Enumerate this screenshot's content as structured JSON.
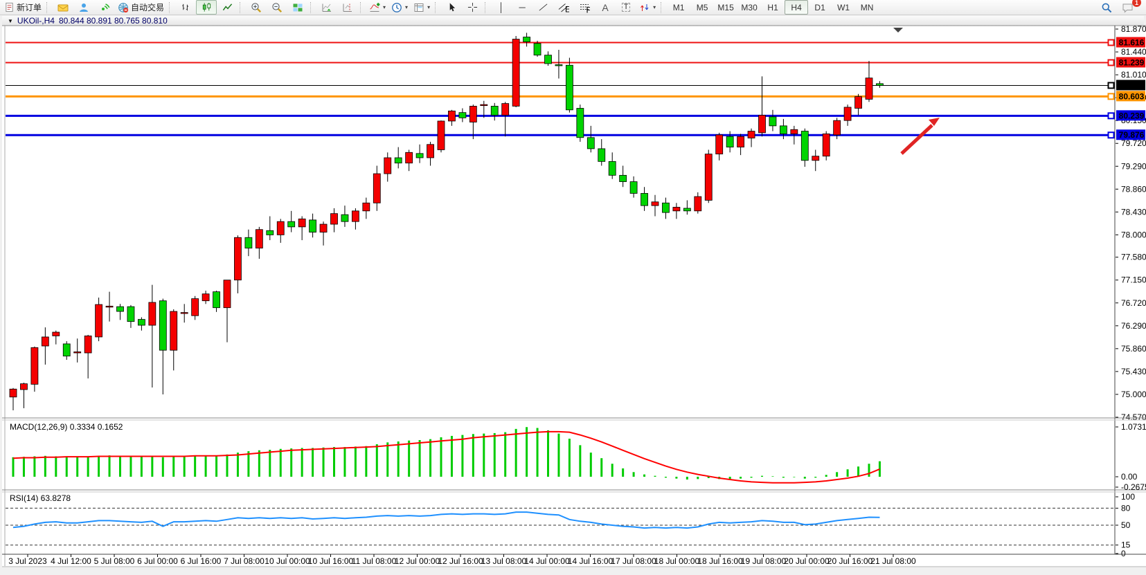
{
  "toolbar": {
    "new_order_label": "新订单",
    "autotrade_label": "自动交易",
    "timeframes": [
      "M1",
      "M5",
      "M15",
      "M30",
      "H1",
      "H4",
      "D1",
      "W1",
      "MN"
    ],
    "active_timeframe": "H4",
    "notification_count": "1",
    "icons": [
      "new-order-icon",
      "mail-icon",
      "community-icon",
      "signals-icon",
      "globe-icon",
      "bar-chart-icon",
      "candlestick-chart-icon",
      "line-chart-icon",
      "zoom-in-icon",
      "zoom-out-icon",
      "tile-windows-icon",
      "auto-scroll-icon",
      "chart-shift-icon",
      "indicators-plus-icon",
      "periods-clock-icon",
      "template-icon",
      "cursor-icon",
      "crosshair-icon",
      "vertical-line-icon",
      "horizontal-line-icon",
      "trendline-icon",
      "channel-icon",
      "fibonacci-icon",
      "text-icon",
      "label-icon",
      "shapes-icon",
      "search-icon",
      "chat-icon"
    ]
  },
  "chart": {
    "symbol_period": "UKOil-,H4",
    "ohlc": "80.844 80.891 80.765 80.810",
    "menu_glyph": "▼"
  },
  "chart_data": [
    {
      "type": "candlestick",
      "title": "UKOil-,H4",
      "up_color": "#f40000",
      "down_color": "#00d400",
      "x_labels": [
        "3 Jul 2023",
        "4 Jul 12:00",
        "5 Jul 08:00",
        "6 Jul 00:00",
        "6 Jul 16:00",
        "7 Jul 08:00",
        "10 Jul 00:00",
        "10 Jul 16:00",
        "11 Jul 08:00",
        "12 Jul 00:00",
        "12 Jul 16:00",
        "13 Jul 08:00",
        "14 Jul 00:00",
        "14 Jul 16:00",
        "17 Jul 08:00",
        "18 Jul 00:00",
        "18 Jul 16:00",
        "19 Jul 08:00",
        "20 Jul 00:00",
        "20 Jul 16:00",
        "21 Jul 08:00"
      ],
      "y_ticks": [
        "81.870",
        "81.440",
        "81.010",
        "80.580",
        "80.150",
        "79.720",
        "79.290",
        "78.860",
        "78.430",
        "78.000",
        "77.580",
        "77.150",
        "76.720",
        "76.290",
        "75.860",
        "75.430",
        "75.000",
        "74.570"
      ],
      "hlines": [
        {
          "label": "81.616",
          "price": 81.616,
          "color": "#ee1111",
          "width": 2
        },
        {
          "label": "81.239",
          "price": 81.239,
          "color": "#ee1111",
          "width": 2
        },
        {
          "label": "80.603",
          "price": 80.603,
          "color": "#ff9400",
          "width": 3
        },
        {
          "label": "80.239",
          "price": 80.239,
          "color": "#0000e0",
          "width": 3
        },
        {
          "label": "79.876",
          "price": 79.876,
          "color": "#0000e0",
          "width": 3
        }
      ],
      "current_price": {
        "label": "80.810",
        "price": 80.81,
        "color": "#000000"
      },
      "annotations": [
        {
          "type": "arrow",
          "color": "#e02424",
          "note": "red up-right arrow pointing at 80.239 support line"
        }
      ],
      "candles": [
        [
          74.95,
          75.12,
          74.7,
          75.1
        ],
        [
          75.09,
          75.22,
          74.74,
          75.2
        ],
        [
          75.19,
          75.9,
          75.05,
          75.88
        ],
        [
          75.91,
          76.26,
          75.56,
          76.08
        ],
        [
          76.1,
          76.2,
          75.94,
          76.17
        ],
        [
          75.95,
          76.0,
          75.65,
          75.72
        ],
        [
          75.78,
          76.05,
          75.6,
          75.8
        ],
        [
          75.78,
          76.12,
          75.3,
          76.1
        ],
        [
          76.08,
          76.82,
          76.0,
          76.69
        ],
        [
          76.66,
          76.93,
          76.37,
          76.66
        ],
        [
          76.65,
          76.7,
          76.4,
          76.56
        ],
        [
          76.65,
          76.68,
          76.25,
          76.37
        ],
        [
          76.41,
          76.45,
          76.2,
          76.3
        ],
        [
          76.3,
          77.06,
          75.13,
          76.73
        ],
        [
          76.76,
          76.8,
          75.0,
          75.83
        ],
        [
          75.83,
          76.6,
          75.45,
          76.56
        ],
        [
          76.54,
          76.7,
          76.35,
          76.54
        ],
        [
          76.48,
          76.85,
          76.4,
          76.8
        ],
        [
          76.76,
          76.95,
          76.7,
          76.89
        ],
        [
          76.93,
          76.95,
          76.55,
          76.63
        ],
        [
          76.63,
          77.15,
          75.98,
          77.15
        ],
        [
          77.15,
          77.99,
          76.9,
          77.95
        ],
        [
          77.95,
          78.1,
          77.6,
          77.75
        ],
        [
          77.75,
          78.15,
          77.55,
          78.1
        ],
        [
          78.08,
          78.35,
          77.9,
          78.0
        ],
        [
          78.0,
          78.3,
          77.85,
          78.25
        ],
        [
          78.25,
          78.45,
          78.05,
          78.15
        ],
        [
          78.15,
          78.35,
          77.9,
          78.3
        ],
        [
          78.28,
          78.4,
          77.95,
          78.05
        ],
        [
          78.05,
          78.25,
          77.8,
          78.2
        ],
        [
          78.2,
          78.5,
          78.05,
          78.4
        ],
        [
          78.38,
          78.55,
          78.15,
          78.25
        ],
        [
          78.25,
          78.5,
          78.1,
          78.45
        ],
        [
          78.45,
          78.7,
          78.3,
          78.6
        ],
        [
          78.6,
          79.3,
          78.45,
          79.15
        ],
        [
          79.15,
          79.55,
          79.0,
          79.45
        ],
        [
          79.45,
          79.65,
          79.25,
          79.35
        ],
        [
          79.35,
          79.6,
          79.2,
          79.55
        ],
        [
          79.53,
          79.7,
          79.35,
          79.45
        ],
        [
          79.45,
          79.75,
          79.3,
          79.7
        ],
        [
          79.6,
          80.15,
          79.55,
          80.14
        ],
        [
          80.14,
          80.35,
          80.05,
          80.33
        ],
        [
          80.3,
          80.38,
          80.12,
          80.2
        ],
        [
          80.12,
          80.45,
          79.8,
          80.42
        ],
        [
          80.44,
          80.52,
          80.2,
          80.45
        ],
        [
          80.42,
          80.48,
          80.15,
          80.25
        ],
        [
          80.25,
          80.5,
          79.85,
          80.47
        ],
        [
          80.42,
          81.74,
          80.4,
          81.68
        ],
        [
          81.72,
          81.8,
          81.54,
          81.63
        ],
        [
          81.6,
          81.65,
          81.35,
          81.38
        ],
        [
          81.38,
          81.45,
          81.18,
          81.22
        ],
        [
          81.2,
          81.48,
          80.94,
          81.19
        ],
        [
          81.19,
          81.33,
          80.3,
          80.35
        ],
        [
          80.38,
          80.45,
          79.75,
          79.83
        ],
        [
          79.83,
          80.05,
          79.55,
          79.62
        ],
        [
          79.62,
          79.8,
          79.3,
          79.38
        ],
        [
          79.38,
          79.55,
          79.05,
          79.12
        ],
        [
          79.12,
          79.3,
          78.9,
          79.0
        ],
        [
          79.0,
          79.1,
          78.7,
          78.78
        ],
        [
          78.78,
          78.9,
          78.45,
          78.55
        ],
        [
          78.55,
          78.75,
          78.35,
          78.62
        ],
        [
          78.6,
          78.7,
          78.3,
          78.42
        ],
        [
          78.45,
          78.6,
          78.3,
          78.52
        ],
        [
          78.5,
          78.65,
          78.38,
          78.45
        ],
        [
          78.45,
          78.8,
          78.4,
          78.72
        ],
        [
          78.65,
          79.6,
          78.6,
          79.52
        ],
        [
          79.52,
          79.92,
          79.4,
          79.88
        ],
        [
          79.85,
          79.95,
          79.55,
          79.65
        ],
        [
          79.65,
          79.9,
          79.5,
          79.85
        ],
        [
          79.82,
          80.0,
          79.65,
          79.95
        ],
        [
          79.92,
          80.98,
          79.85,
          80.25
        ],
        [
          80.22,
          80.35,
          79.95,
          80.05
        ],
        [
          80.05,
          80.18,
          79.8,
          79.9
        ],
        [
          79.9,
          80.05,
          79.7,
          79.98
        ],
        [
          79.95,
          80.0,
          79.28,
          79.4
        ],
        [
          79.4,
          79.6,
          79.2,
          79.48
        ],
        [
          79.48,
          79.95,
          79.4,
          79.9
        ],
        [
          79.88,
          80.2,
          79.8,
          80.15
        ],
        [
          80.15,
          80.45,
          80.05,
          80.4
        ],
        [
          80.38,
          80.65,
          80.25,
          80.6
        ],
        [
          80.55,
          81.27,
          80.5,
          80.95
        ],
        [
          80.844,
          80.891,
          80.765,
          80.81
        ]
      ]
    },
    {
      "type": "bar",
      "name": "MACD",
      "label": "MACD(12,26,9) 0.3334 0.1652",
      "value_main": "0.3334",
      "value_signal": "0.1652",
      "scale": [
        "1.0731",
        "0.00",
        "-0.2675"
      ],
      "hist_color": "#00cc00",
      "signal_color": "#ff0000",
      "histogram": [
        0.42,
        0.43,
        0.44,
        0.45,
        0.44,
        0.43,
        0.42,
        0.43,
        0.45,
        0.46,
        0.45,
        0.44,
        0.43,
        0.44,
        0.42,
        0.43,
        0.44,
        0.45,
        0.46,
        0.45,
        0.48,
        0.52,
        0.55,
        0.57,
        0.58,
        0.6,
        0.61,
        0.62,
        0.62,
        0.63,
        0.64,
        0.64,
        0.65,
        0.66,
        0.7,
        0.74,
        0.76,
        0.78,
        0.79,
        0.81,
        0.85,
        0.88,
        0.9,
        0.92,
        0.93,
        0.94,
        0.96,
        1.03,
        1.07,
        1.05,
        1.0,
        0.93,
        0.82,
        0.68,
        0.52,
        0.4,
        0.28,
        0.18,
        0.1,
        0.05,
        0.02,
        -0.02,
        -0.04,
        -0.06,
        -0.05,
        -0.03,
        -0.05,
        -0.06,
        -0.04,
        -0.02,
        0.02,
        0.01,
        -0.02,
        -0.01,
        -0.04,
        -0.02,
        0.04,
        0.1,
        0.16,
        0.22,
        0.28,
        0.3334
      ],
      "signal": [
        0.4,
        0.41,
        0.41,
        0.42,
        0.42,
        0.43,
        0.43,
        0.43,
        0.44,
        0.44,
        0.44,
        0.44,
        0.44,
        0.44,
        0.44,
        0.44,
        0.44,
        0.45,
        0.45,
        0.45,
        0.46,
        0.47,
        0.49,
        0.51,
        0.53,
        0.55,
        0.57,
        0.58,
        0.59,
        0.6,
        0.61,
        0.62,
        0.63,
        0.64,
        0.65,
        0.67,
        0.69,
        0.71,
        0.73,
        0.75,
        0.77,
        0.79,
        0.81,
        0.84,
        0.86,
        0.88,
        0.9,
        0.92,
        0.94,
        0.96,
        0.97,
        0.97,
        0.96,
        0.9,
        0.83,
        0.75,
        0.66,
        0.57,
        0.48,
        0.39,
        0.31,
        0.23,
        0.16,
        0.1,
        0.05,
        0.01,
        -0.03,
        -0.06,
        -0.09,
        -0.11,
        -0.12,
        -0.13,
        -0.13,
        -0.13,
        -0.12,
        -0.11,
        -0.09,
        -0.06,
        -0.03,
        0.01,
        0.07,
        0.1652
      ]
    },
    {
      "type": "line",
      "name": "RSI",
      "label": "RSI(14) 63.8278",
      "value": "63.8278",
      "levels": [
        "100",
        "80",
        "50",
        "15",
        "0"
      ],
      "level_lines": [
        80,
        50,
        15
      ],
      "color": "#1e90ff",
      "series": [
        46,
        48,
        52,
        55,
        56,
        54,
        54,
        56,
        58,
        58,
        57,
        56,
        55,
        57,
        48,
        56,
        56,
        57,
        58,
        57,
        60,
        63,
        62,
        63,
        62,
        63,
        62,
        63,
        61,
        62,
        63,
        62,
        63,
        64,
        66,
        67,
        66,
        67,
        66,
        67,
        69,
        70,
        69,
        70,
        70,
        69,
        70,
        73,
        73,
        71,
        69,
        68,
        60,
        57,
        55,
        52,
        50,
        48,
        47,
        45,
        46,
        45,
        46,
        45,
        47,
        52,
        55,
        54,
        55,
        56,
        58,
        57,
        55,
        55,
        51,
        52,
        55,
        58,
        60,
        62,
        64,
        63.8278
      ]
    }
  ]
}
